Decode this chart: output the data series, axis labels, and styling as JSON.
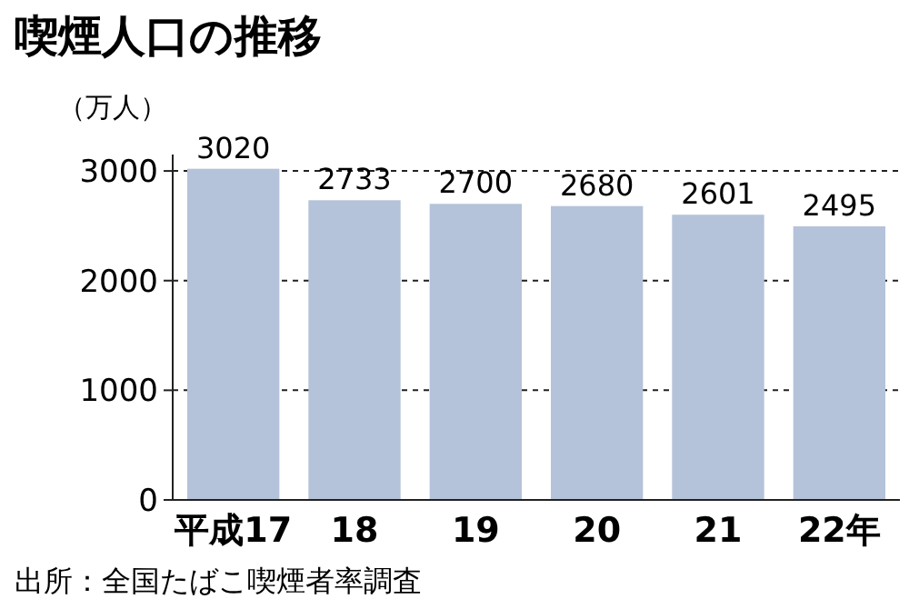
{
  "chart_data": {
    "type": "bar",
    "title": "喫煙人口の推移",
    "ylabel": "（万人）",
    "categories": [
      "平成17",
      "18",
      "19",
      "20",
      "21",
      "22年"
    ],
    "values": [
      3020,
      2733,
      2700,
      2680,
      2601,
      2495
    ],
    "color": "#b4c3d9",
    "ylim": [
      0,
      3150
    ],
    "yticks": [
      0,
      1000,
      2000,
      3000
    ],
    "grid": "y",
    "line_style": "dashed",
    "data_labels": true,
    "annotations": [
      "出所：全国たばこ喫煙者率調査"
    ]
  }
}
